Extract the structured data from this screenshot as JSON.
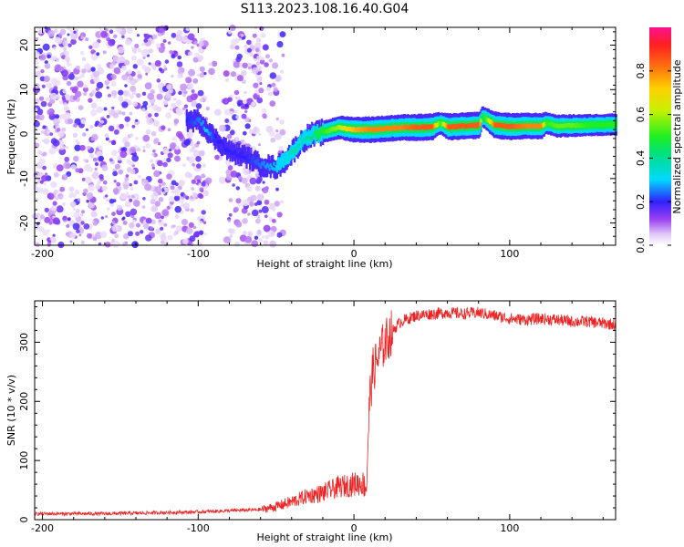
{
  "title": "S113.2023.108.16.40.G04",
  "colors": {
    "snr_line": "#ee2222",
    "spectrogram_low": "#8a2be2",
    "axis": "#000000"
  },
  "chart_data": [
    {
      "type": "heatmap",
      "name": "spectrogram",
      "xlabel": "Height of straight line (km)",
      "ylabel": "Frequency (Hz)",
      "xlim": [
        -205,
        168
      ],
      "ylim": [
        -25,
        24
      ],
      "xticks": [
        -200,
        -100,
        0,
        100
      ],
      "yticks": [
        -20,
        -10,
        0,
        10,
        20
      ],
      "colorbar": {
        "label": "Normalized spectral amplitude",
        "range": [
          0,
          1
        ],
        "ticks": [
          "0.0",
          "0.2",
          "0.4",
          "0.6",
          "0.8"
        ],
        "colormap": "rainbow (white-violet-blue-cyan-green-yellow-orange-red-magenta)"
      },
      "ridge": {
        "description": "dominant frequency track",
        "x": [
          -108,
          -100,
          -95,
          -90,
          -80,
          -70,
          -60,
          -50,
          -45,
          -40,
          -35,
          -30,
          -25,
          -20,
          -15,
          -10,
          -5,
          0,
          10,
          20,
          30,
          40,
          50,
          55,
          60,
          70,
          80,
          82,
          90,
          100,
          110,
          120,
          123,
          130,
          140,
          150,
          160,
          168
        ],
        "y": [
          3,
          3,
          1,
          -1,
          -4,
          -5,
          -7,
          -7.5,
          -6,
          -4,
          -2,
          -0.5,
          0,
          0.5,
          1,
          1.5,
          1.2,
          1,
          1,
          1.2,
          1.5,
          1.5,
          1.6,
          2.5,
          1.6,
          1.8,
          2,
          4,
          2,
          1.7,
          1.8,
          1.8,
          2.5,
          1.8,
          1.9,
          2,
          2.1,
          2.2
        ],
        "amplitude": [
          0.2,
          0.25,
          0.3,
          0.2,
          0.2,
          0.2,
          0.25,
          0.3,
          0.3,
          0.4,
          0.35,
          0.4,
          0.45,
          0.5,
          0.55,
          0.6,
          0.7,
          0.75,
          0.8,
          0.8,
          0.8,
          0.85,
          0.85,
          0.5,
          0.85,
          0.85,
          0.85,
          0.4,
          0.85,
          0.85,
          0.8,
          0.8,
          0.5,
          0.55,
          0.55,
          0.5,
          0.5,
          0.5
        ]
      }
    },
    {
      "type": "line",
      "name": "snr",
      "xlabel": "Height of straight line (km)",
      "ylabel": "SNR (10 * v/v)",
      "xlim": [
        -205,
        168
      ],
      "ylim": [
        0,
        370
      ],
      "xticks": [
        -200,
        -100,
        0,
        100
      ],
      "yticks": [
        0,
        100,
        200,
        300
      ],
      "series": [
        {
          "x": [
            -205,
            -180,
            -160,
            -140,
            -120,
            -100,
            -80,
            -60,
            -50,
            -40,
            -30,
            -20,
            -10,
            0,
            5,
            8,
            10,
            12,
            15,
            18,
            20,
            25,
            30,
            40,
            50,
            60,
            70,
            80,
            90,
            100,
            110,
            120,
            130,
            140,
            150,
            160,
            168
          ],
          "values": [
            10,
            10,
            10,
            11,
            12,
            13,
            15,
            17,
            22,
            30,
            40,
            45,
            55,
            60,
            62,
            55,
            200,
            250,
            270,
            290,
            300,
            320,
            335,
            345,
            348,
            350,
            348,
            350,
            345,
            340,
            338,
            340,
            338,
            335,
            335,
            332,
            330
          ]
        }
      ]
    }
  ]
}
